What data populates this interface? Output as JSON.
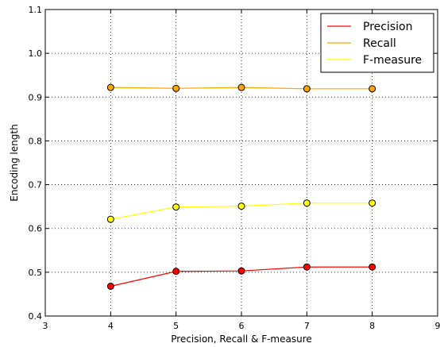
{
  "chart_data": {
    "type": "line",
    "title": "",
    "xlabel": "Precision, Recall & F-measure",
    "ylabel": "Encoding length",
    "xlim": [
      3,
      9
    ],
    "ylim": [
      0.4,
      1.1
    ],
    "x_ticks": [
      "3",
      "4",
      "5",
      "6",
      "7",
      "8",
      "9"
    ],
    "y_ticks": [
      "0.4",
      "0.5",
      "0.6",
      "0.7",
      "0.8",
      "0.9",
      "1.0",
      "1.1"
    ],
    "grid": true,
    "legend_position": "top-right",
    "x": [
      4,
      5,
      6,
      7,
      8
    ],
    "series": [
      {
        "name": "Precision",
        "color": "#ff0000",
        "values": [
          0.468,
          0.502,
          0.503,
          0.512,
          0.512
        ]
      },
      {
        "name": "Recall",
        "color": "#ffa500",
        "values": [
          0.922,
          0.92,
          0.922,
          0.919,
          0.919
        ]
      },
      {
        "name": "F-measure",
        "color": "#ffff00",
        "values": [
          0.621,
          0.649,
          0.651,
          0.658,
          0.658
        ]
      }
    ]
  }
}
